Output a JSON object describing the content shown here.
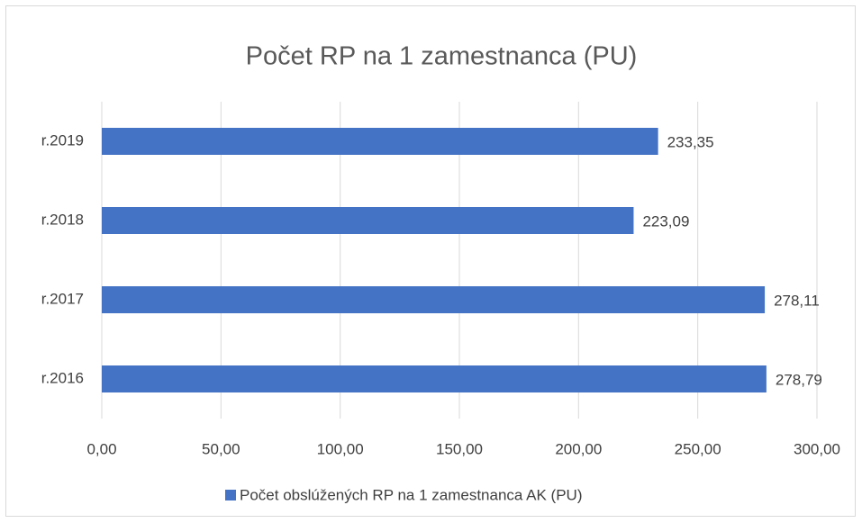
{
  "chart_data": {
    "type": "barh",
    "title": "Počet RP na 1 zamestnanca (PU)",
    "categories": [
      "r.2016",
      "r.2017",
      "r.2018",
      "r.2019"
    ],
    "series": [
      {
        "name": "Počet obslúžených RP na 1 zamestnanca AK (PU)",
        "color": "#4472c4",
        "values": [
          278.79,
          278.11,
          223.09,
          233.35
        ],
        "value_labels": [
          "278,79",
          "278,11",
          "223,09",
          "233,35"
        ]
      }
    ],
    "xlim": [
      0,
      300
    ],
    "xticks": [
      {
        "value": 0,
        "label": "0,00"
      },
      {
        "value": 50,
        "label": "50,00"
      },
      {
        "value": 100,
        "label": "100,00"
      },
      {
        "value": 150,
        "label": "150,00"
      },
      {
        "value": 200,
        "label": "200,00"
      },
      {
        "value": 250,
        "label": "250,00"
      },
      {
        "value": 300,
        "label": "300,00"
      }
    ],
    "grid": true,
    "legend": "bottom"
  }
}
